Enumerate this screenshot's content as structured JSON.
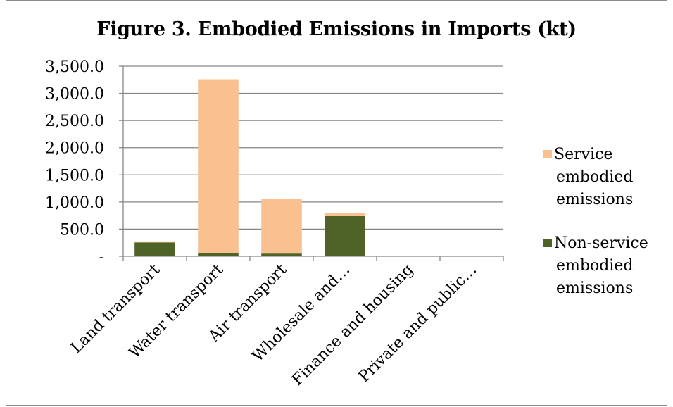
{
  "chart_data": {
    "type": "bar",
    "stacked": true,
    "title": "Figure 3. Embodied Emissions in Imports (kt)",
    "xlabel": "",
    "ylabel": "",
    "ylim": [
      0,
      3500
    ],
    "yticks": [
      0,
      500,
      1000,
      1500,
      2000,
      2500,
      3000,
      3500
    ],
    "ytick_labels": [
      "-",
      "500.0",
      "1,000.0",
      "1,500.0",
      "2,000.0",
      "2,500.0",
      "3,000.0",
      "3,500.0"
    ],
    "grid": true,
    "categories": [
      "Land transport",
      "Water transport",
      "Air transport",
      "Wholesale and…",
      "Finance and housing",
      "Private and public…"
    ],
    "series": [
      {
        "name": "Non-service embodied emissions",
        "color": "#4f6228",
        "values": [
          255,
          55,
          50,
          740,
          0,
          5
        ]
      },
      {
        "name": "Service embodied emissions",
        "color": "#fac090",
        "values": [
          20,
          3205,
          1010,
          60,
          0,
          5
        ]
      }
    ],
    "legend_position": "right",
    "legend": [
      {
        "series": 1,
        "lines": [
          "Service",
          "embodied",
          "emissions"
        ]
      },
      {
        "series": 0,
        "lines": [
          "Non-service",
          "embodied",
          "emissions"
        ]
      }
    ]
  }
}
